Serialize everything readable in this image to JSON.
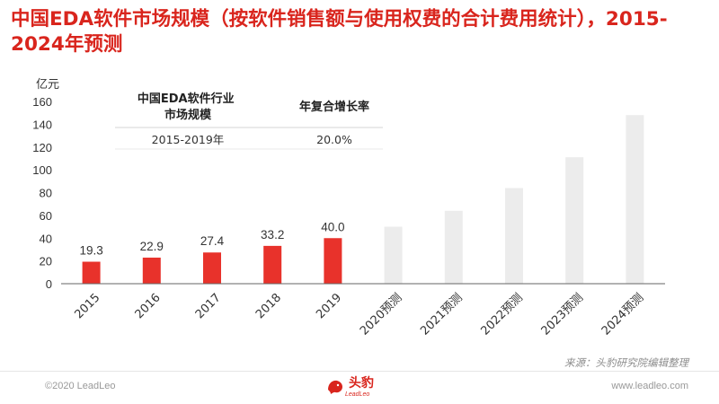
{
  "title": "中国EDA软件市场规模（按软件销售额与使用权费的合计费用统计），2015-2024年预测",
  "chart_data": {
    "type": "bar",
    "ylabel": "亿元",
    "ylim": [
      0,
      160
    ],
    "yticks": [
      0,
      20,
      40,
      60,
      80,
      100,
      120,
      140,
      160
    ],
    "categories": [
      "2015",
      "2016",
      "2017",
      "2018",
      "2019",
      "2020预测",
      "2021预测",
      "2022预测",
      "2023预测",
      "2024预测"
    ],
    "values": [
      19.3,
      22.9,
      27.4,
      33.2,
      40.0,
      50.0,
      64.0,
      84.0,
      111.0,
      148.0
    ],
    "data_labels": [
      "19.3",
      "22.9",
      "27.4",
      "33.2",
      "40.0",
      "",
      "",
      "",
      "",
      ""
    ],
    "colors": {
      "actual": "#e8322b",
      "forecast": "#ececec"
    },
    "grid": false
  },
  "cagr_table": {
    "headers": [
      "中国EDA软件行业\n市场规模",
      "年复合增长率"
    ],
    "row": [
      "2015-2019年",
      "20.0%"
    ]
  },
  "source": "来源：头豹研究院编辑整理",
  "footer": {
    "copyright": "©2020 LeadLeo",
    "logo_text": "头豹",
    "logo_sub": "LeadLeo",
    "website": "www.leadleo.com"
  }
}
